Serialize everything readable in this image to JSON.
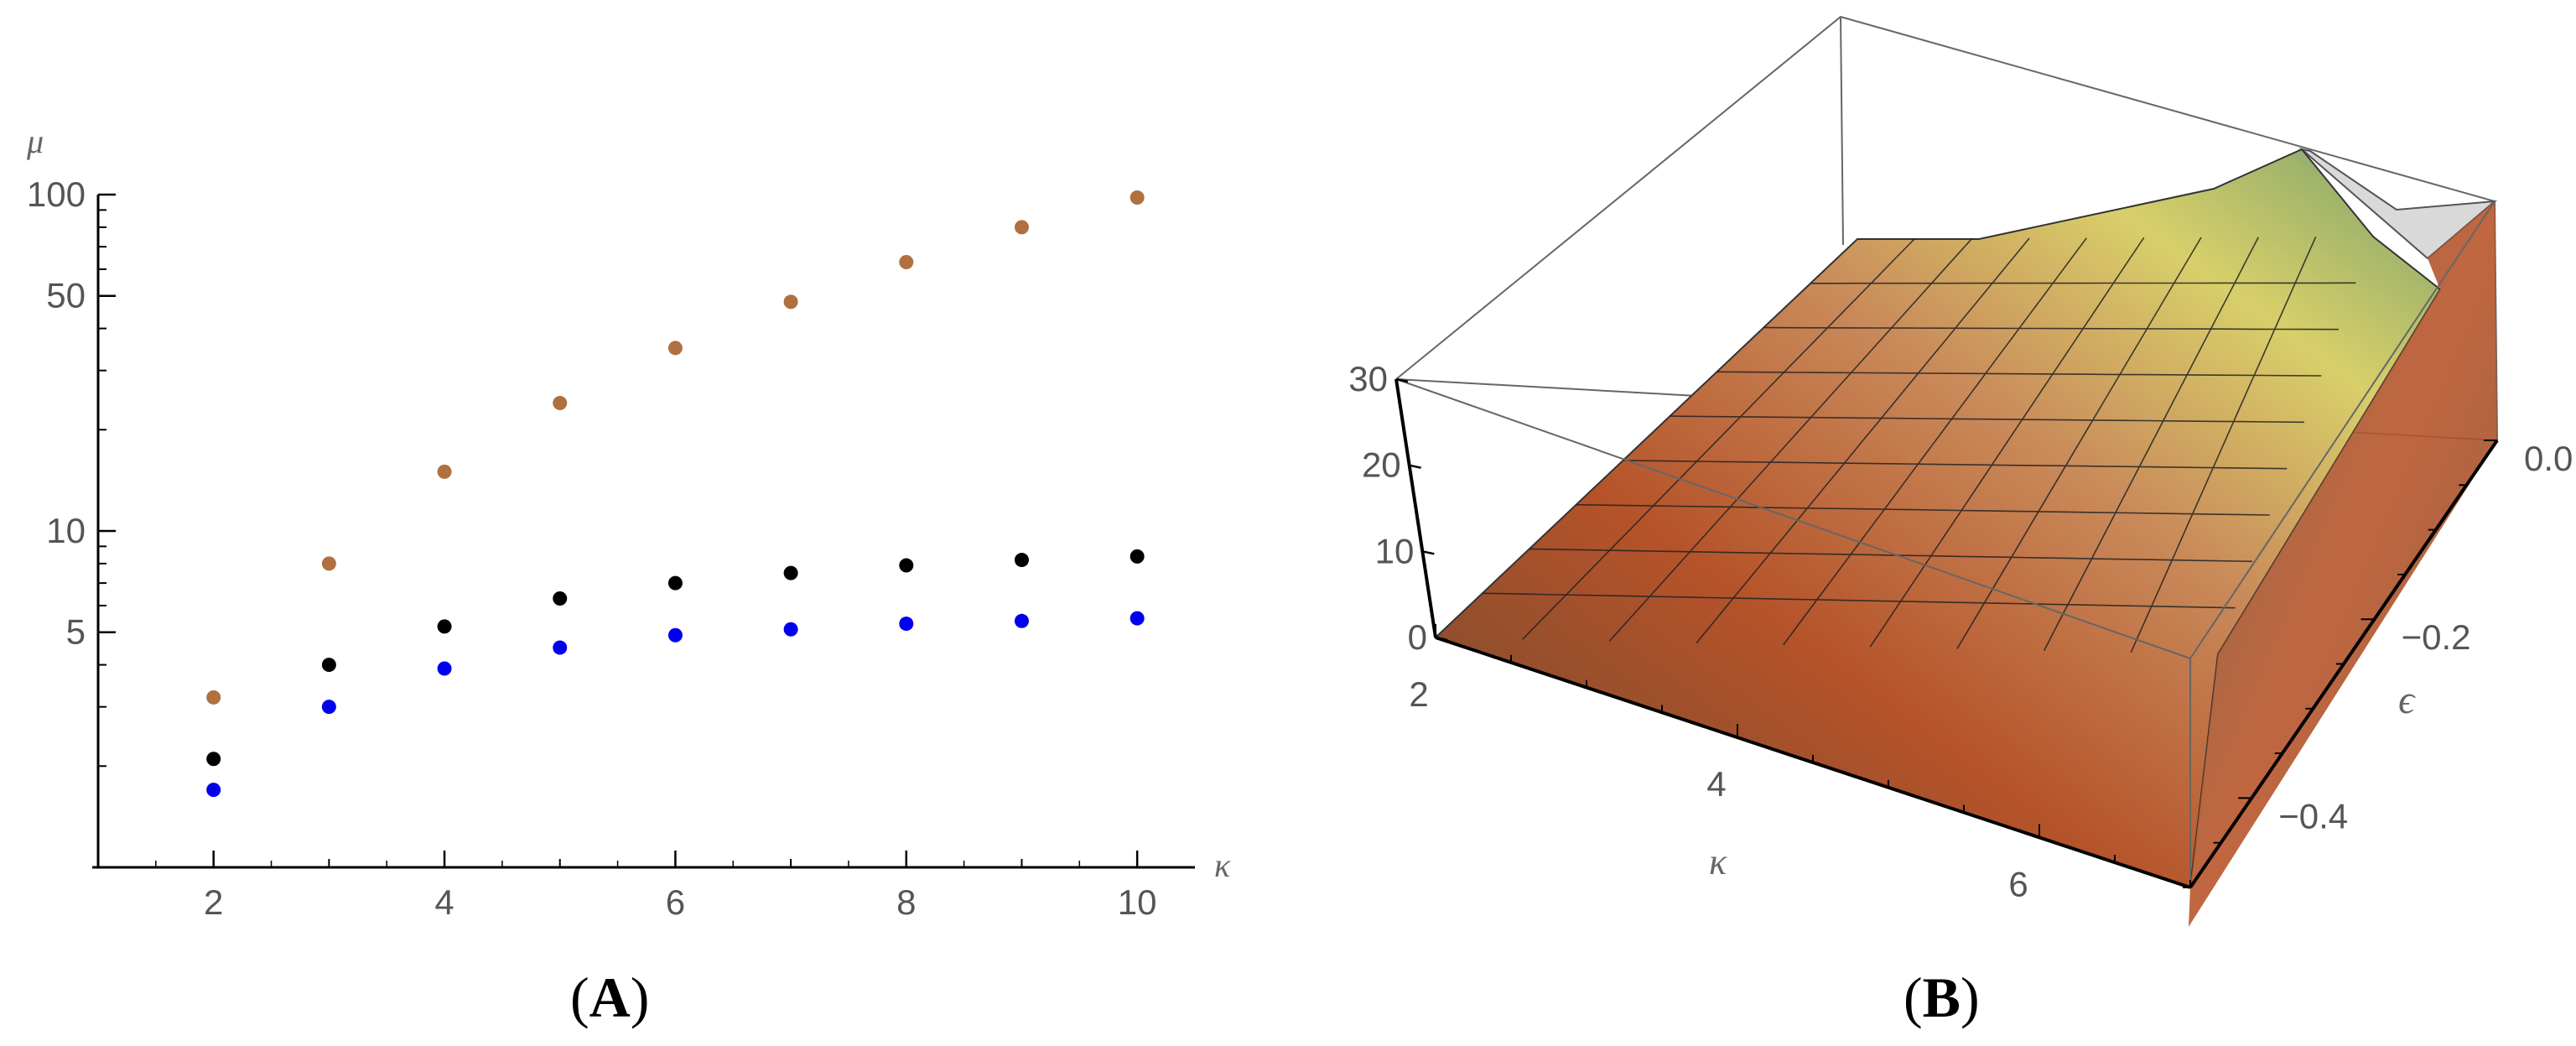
{
  "figure": {
    "panel_a_label": "A",
    "panel_b_label": "B"
  },
  "chart_data": [
    {
      "type": "scatter",
      "panel": "A",
      "xlabel": "κ",
      "ylabel": "μ",
      "y_scale": "log",
      "xlim": [
        1,
        10.5
      ],
      "ylim": [
        1,
        100
      ],
      "x_ticks": [
        2,
        4,
        6,
        8,
        10
      ],
      "y_ticks": [
        5,
        10,
        50,
        100
      ],
      "grid": false,
      "series": [
        {
          "color": "#b0703f",
          "x": [
            2,
            3,
            4,
            5,
            6,
            7,
            8,
            9,
            10
          ],
          "values": [
            3.2,
            8.0,
            15.0,
            24.0,
            35.0,
            48.0,
            63.0,
            80.0,
            98.0
          ]
        },
        {
          "color": "#000000",
          "x": [
            2,
            3,
            4,
            5,
            6,
            7,
            8,
            9,
            10
          ],
          "values": [
            2.1,
            4.0,
            5.2,
            6.3,
            7.0,
            7.5,
            7.9,
            8.2,
            8.4
          ]
        },
        {
          "color": "#0000ee",
          "x": [
            2,
            3,
            4,
            5,
            6,
            7,
            8,
            9,
            10
          ],
          "values": [
            1.7,
            3.0,
            3.9,
            4.5,
            4.9,
            5.1,
            5.3,
            5.4,
            5.5
          ]
        }
      ]
    },
    {
      "type": "surface",
      "panel": "B",
      "xlabel": "κ",
      "ylabel": "ϵ",
      "x_ticks": [
        2,
        4,
        6
      ],
      "y_ticks": [
        0.0,
        -0.2,
        -0.4
      ],
      "y_tick_labels": [
        "0.0",
        "−0.2",
        "−0.4"
      ],
      "z_ticks": [
        0,
        10,
        20,
        30
      ],
      "z_tick_labels": [
        "0",
        "10",
        "20",
        "30"
      ],
      "xlim": [
        2,
        7
      ],
      "ylim": [
        -0.5,
        0
      ],
      "zlim": [
        0,
        30
      ]
    }
  ]
}
